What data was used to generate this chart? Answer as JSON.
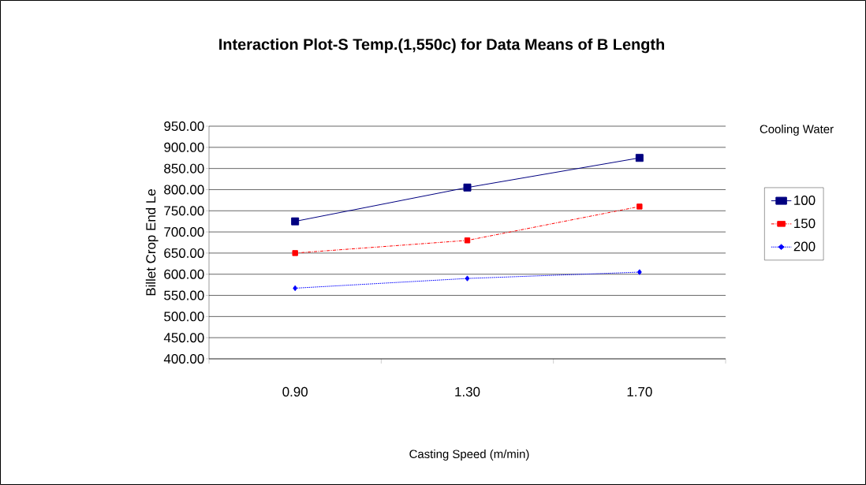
{
  "chart_data": {
    "type": "line",
    "title": "Interaction Plot-S Temp.(1,550c) for Data Means of B Length",
    "xlabel": "Casting Speed (m/min)",
    "ylabel": "Billet Crop End Le",
    "legend_title": "Cooling Water",
    "categories": [
      "0.90",
      "1.30",
      "1.70"
    ],
    "series": [
      {
        "name": "100",
        "color": "#000080",
        "values": [
          725,
          805,
          875
        ],
        "marker": "square",
        "line_style": "solid"
      },
      {
        "name": "150",
        "color": "#ff0000",
        "values": [
          650,
          680,
          760
        ],
        "marker": "square",
        "line_style": "dashed"
      },
      {
        "name": "200",
        "color": "#0000ff",
        "values": [
          567,
          590,
          605
        ],
        "marker": "diamond",
        "line_style": "dotted"
      }
    ],
    "ylim": [
      400,
      950
    ],
    "yticks": [
      {
        "value": 400,
        "label": "400.00"
      },
      {
        "value": 450,
        "label": "450.00"
      },
      {
        "value": 500,
        "label": "500.00"
      },
      {
        "value": 550,
        "label": "550.00"
      },
      {
        "value": 600,
        "label": "600.00"
      },
      {
        "value": 650,
        "label": "650.00"
      },
      {
        "value": 700,
        "label": "700.00"
      },
      {
        "value": 750,
        "label": "750.00"
      },
      {
        "value": 800,
        "label": "800.00"
      },
      {
        "value": 850,
        "label": "850.00"
      },
      {
        "value": 900,
        "label": "900.00"
      },
      {
        "value": 950,
        "label": "950.00"
      }
    ],
    "grid": "y",
    "legend": "right"
  }
}
